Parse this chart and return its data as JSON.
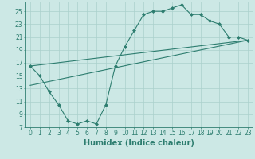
{
  "title": "",
  "xlabel": "Humidex (Indice chaleur)",
  "background_color": "#cce8e5",
  "line_color": "#2d7d6f",
  "grid_color": "#aad0cc",
  "xlim": [
    -0.5,
    23.5
  ],
  "ylim": [
    7,
    26.5
  ],
  "xticks": [
    0,
    1,
    2,
    3,
    4,
    5,
    6,
    7,
    8,
    9,
    10,
    11,
    12,
    13,
    14,
    15,
    16,
    17,
    18,
    19,
    20,
    21,
    22,
    23
  ],
  "yticks": [
    7,
    9,
    11,
    13,
    15,
    17,
    19,
    21,
    23,
    25
  ],
  "curve1_x": [
    0,
    1,
    2,
    3,
    4,
    5,
    6,
    7,
    8,
    9,
    10,
    11,
    12,
    13,
    14,
    15,
    16,
    17,
    18,
    19,
    20,
    21,
    22,
    23
  ],
  "curve1_y": [
    16.5,
    15.0,
    12.5,
    10.5,
    8.0,
    7.5,
    8.0,
    7.5,
    10.5,
    16.5,
    19.5,
    22.0,
    24.5,
    25.0,
    25.0,
    25.5,
    26.0,
    24.5,
    24.5,
    23.5,
    23.0,
    21.0,
    21.0,
    20.5
  ],
  "line1_x": [
    0,
    23
  ],
  "line1_y": [
    16.5,
    20.5
  ],
  "line2_x": [
    0,
    23
  ],
  "line2_y": [
    13.5,
    20.5
  ],
  "marker": "D",
  "markersize": 2.0,
  "linewidth": 0.8,
  "xlabel_fontsize": 7,
  "tick_fontsize": 5.5
}
